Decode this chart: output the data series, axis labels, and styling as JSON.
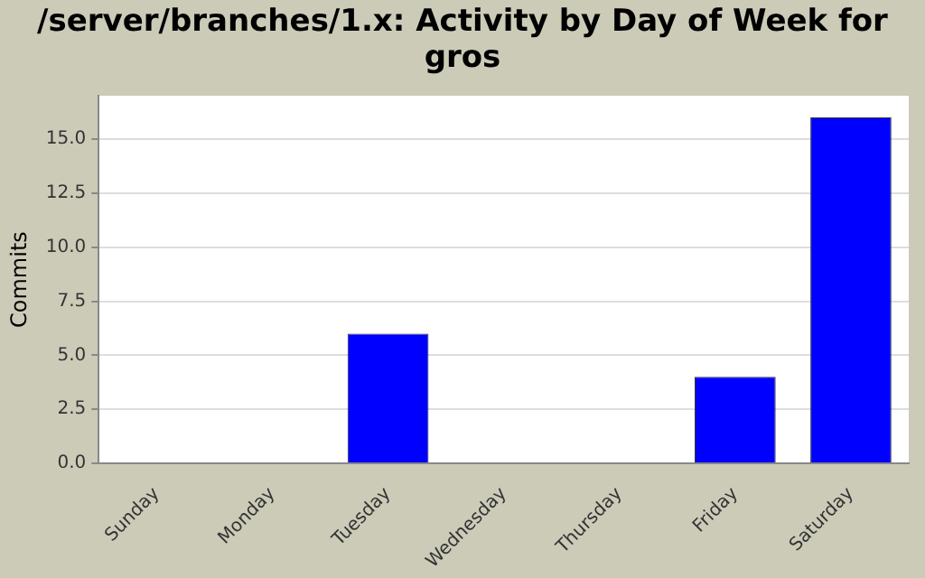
{
  "chart_data": {
    "type": "bar",
    "title": "/server/branches/1.x: Activity by Day of Week for gros",
    "ylabel": "Commits",
    "categories": [
      "Sunday",
      "Monday",
      "Tuesday",
      "Wednesday",
      "Thursday",
      "Friday",
      "Saturday"
    ],
    "values": [
      0,
      0,
      6,
      0,
      0,
      4,
      16
    ],
    "color": "#0000ff",
    "ylim": [
      0,
      17
    ],
    "yticks": [
      {
        "value": 0,
        "label": "0.0"
      },
      {
        "value": 2.5,
        "label": "2.5"
      },
      {
        "value": 5,
        "label": "5.0"
      },
      {
        "value": 7.5,
        "label": "7.5"
      },
      {
        "value": 10,
        "label": "10.0"
      },
      {
        "value": 12.5,
        "label": "12.5"
      },
      {
        "value": 15,
        "label": "15.0"
      }
    ],
    "grid": "y",
    "legend": false
  }
}
